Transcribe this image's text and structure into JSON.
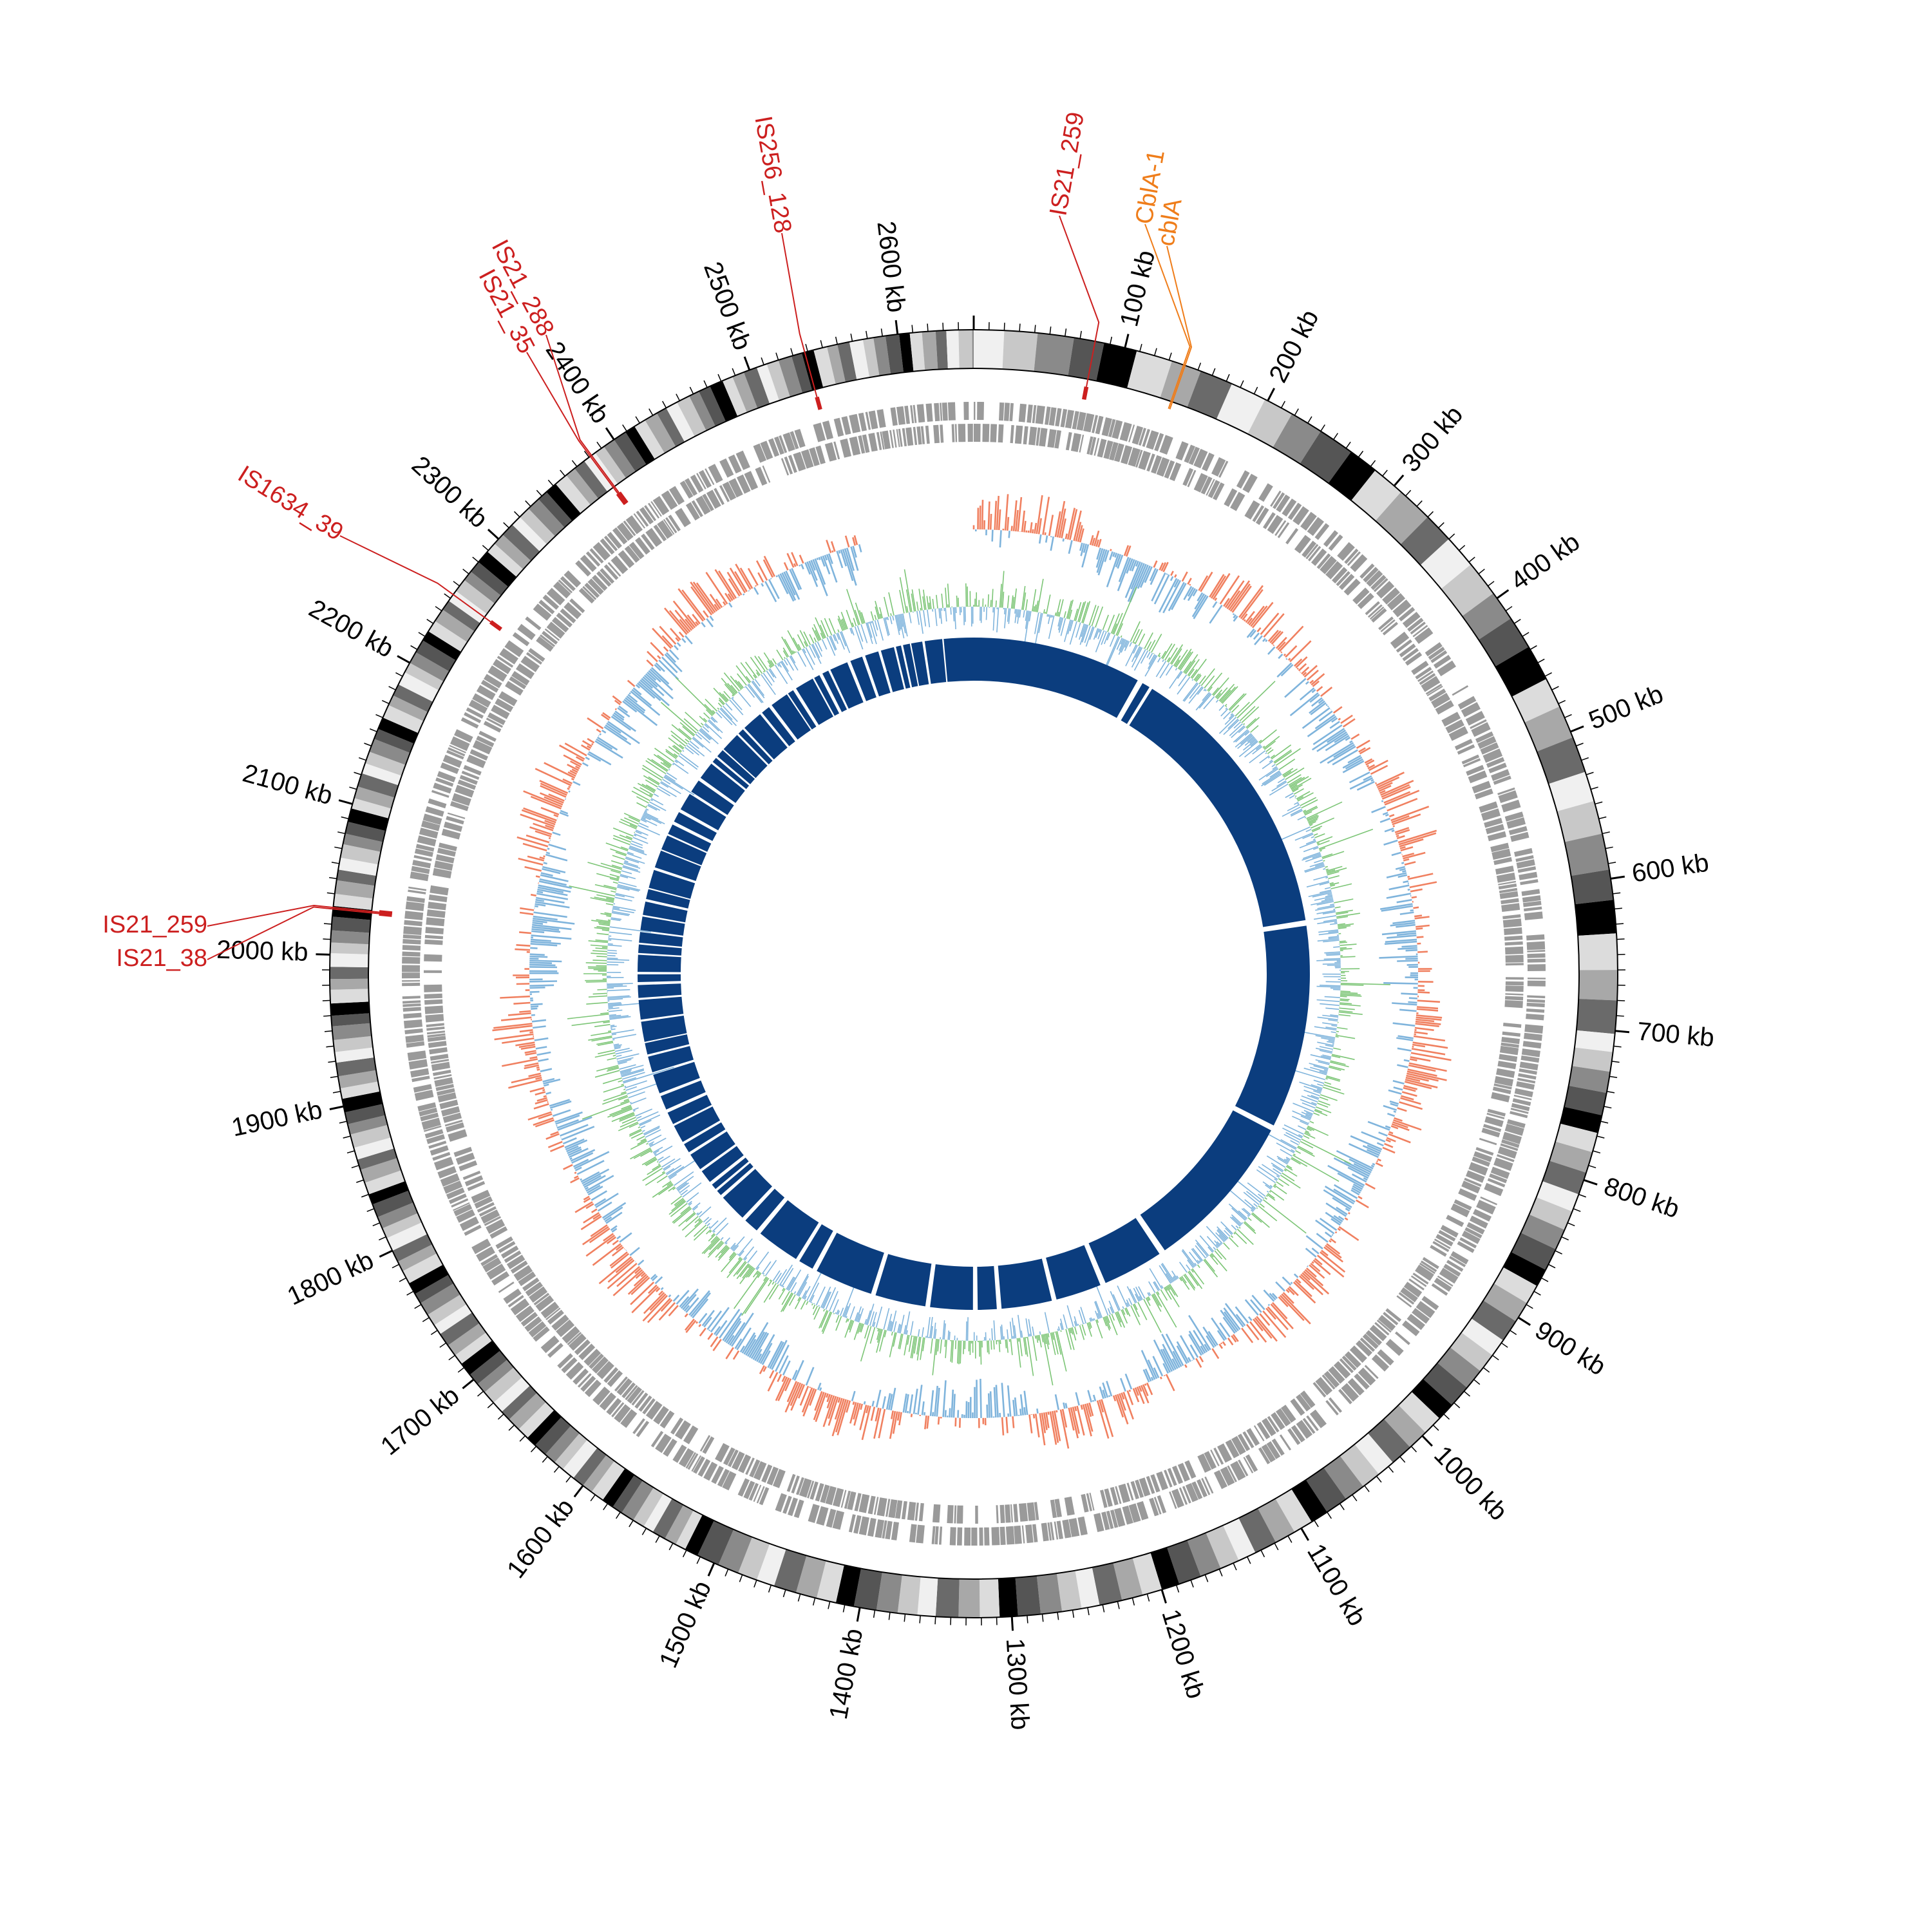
{
  "genome": {
    "length_kb": 2650,
    "scale_tick_labels": [
      "100 kb",
      "200 kb",
      "300 kb",
      "400 kb",
      "500 kb",
      "600 kb",
      "700 kb",
      "800 kb",
      "900 kb",
      "1000 kb",
      "1100 kb",
      "1200 kb",
      "1300 kb",
      "1400 kb",
      "1500 kb",
      "1600 kb",
      "1700 kb",
      "1800 kb",
      "1900 kb",
      "2000 kb",
      "2100 kb",
      "2200 kb",
      "2300 kb",
      "2400 kb",
      "2500 kb",
      "2600 kb"
    ]
  },
  "colors": {
    "insertion_sequence": "#cc1f1f",
    "resistance_gene": "#ef7d1a",
    "gc_skew_positive": "#f08060",
    "gc_skew_negative": "#7fb4dc",
    "gc_content": "#7cc576",
    "homology_block": "#0b3d7e",
    "cds_track": "#9a9a9a"
  },
  "features": [
    {
      "label": "IS21_259",
      "type": "insertion_sequence",
      "position_kb": 80
    },
    {
      "label": "CblA-1",
      "type": "resistance_gene",
      "position_kb": 140
    },
    {
      "label": "cblA",
      "type": "resistance_gene",
      "position_kb": 141
    },
    {
      "label": "IS256_128",
      "type": "insertion_sequence",
      "position_kb": 2538
    },
    {
      "label": "IS21_288",
      "type": "insertion_sequence",
      "position_kb": 2382
    },
    {
      "label": "IS21_35",
      "type": "insertion_sequence",
      "position_kb": 2381
    },
    {
      "label": "IS1634_39",
      "type": "insertion_sequence",
      "position_kb": 2253
    },
    {
      "label": "IS21_259",
      "type": "insertion_sequence",
      "position_kb": 2031
    },
    {
      "label": "IS21_38",
      "type": "insertion_sequence",
      "position_kb": 2030
    }
  ]
}
